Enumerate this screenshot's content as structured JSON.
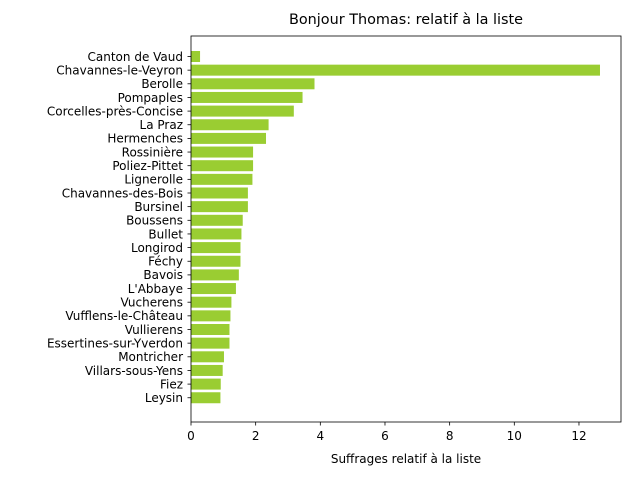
{
  "chart_data": {
    "type": "bar",
    "orientation": "horizontal",
    "title": "Bonjour Thomas: relatif à la liste",
    "xlabel": "Suffrages relatif à la liste",
    "ylabel": "",
    "xlim": [
      0,
      13.3
    ],
    "xticks": [
      0,
      2,
      4,
      6,
      8,
      10,
      12
    ],
    "grid": false,
    "legend": "none",
    "bar_color": "#9acd32",
    "categories": [
      "Canton de Vaud",
      "Chavannes-le-Veyron",
      "Berolle",
      "Pompaples",
      "Corcelles-près-Concise",
      "La Praz",
      "Hermenches",
      "Rossinière",
      "Poliez-Pittet",
      "Lignerolle",
      "Chavannes-des-Bois",
      "Bursinel",
      "Boussens",
      "Bullet",
      "Longirod",
      "Féchy",
      "Bavois",
      "L'Abbaye",
      "Vucherens",
      "Vufflens-le-Château",
      "Vullierens",
      "Essertines-sur-Yverdon",
      "Montricher",
      "Villars-sous-Yens",
      "Fiez",
      "Leysin"
    ],
    "values": [
      0.28,
      12.65,
      3.82,
      3.45,
      3.18,
      2.4,
      2.32,
      1.92,
      1.92,
      1.9,
      1.76,
      1.76,
      1.6,
      1.56,
      1.53,
      1.53,
      1.48,
      1.39,
      1.25,
      1.22,
      1.19,
      1.19,
      1.02,
      0.98,
      0.92,
      0.91
    ]
  }
}
